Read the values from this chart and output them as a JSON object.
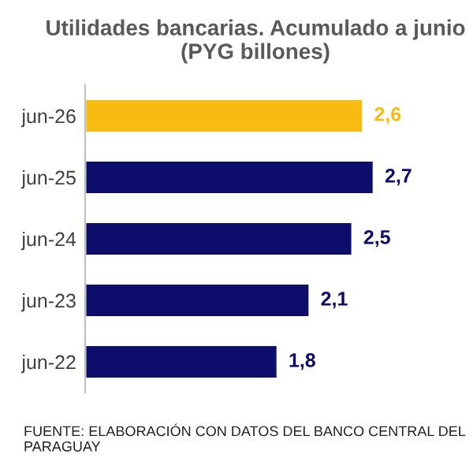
{
  "chart_data": {
    "type": "bar",
    "orientation": "horizontal",
    "title": "Utilidades bancarias. Acumulado a junio\n(PYG billones)",
    "categories": [
      "jun-26",
      "jun-25",
      "jun-24",
      "jun-23",
      "jun-22"
    ],
    "values": [
      2.6,
      2.7,
      2.5,
      2.1,
      1.8
    ],
    "value_labels": [
      "2,6",
      "2,7",
      "2,5",
      "2,1",
      "1,8"
    ],
    "colors": [
      "#f8bb12",
      "#0d0d6b",
      "#0d0d6b",
      "#0d0d6b",
      "#0d0d6b"
    ],
    "grid": false,
    "legend": false,
    "annotations": [
      "FUENTE: ELABORACIÓN CON DATOS DEL BANCO CENTRAL DEL PARAGUAY"
    ]
  }
}
